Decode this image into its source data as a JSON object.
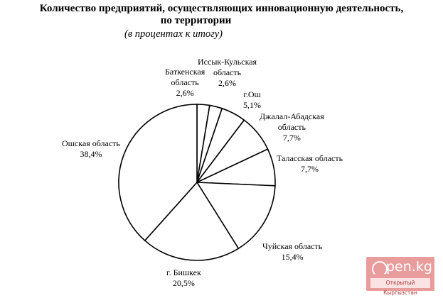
{
  "chart_data": {
    "type": "pie",
    "title": "Количество предприятий, осуществляющих инновационную деятельность, по территории",
    "subtitle": "(в процентах к итогу)",
    "start_angle": "12 o'clock, clockwise",
    "slices": [
      {
        "label": "Баткенская область",
        "value": 2.6,
        "display": "2,6%"
      },
      {
        "label": "Иссык-Кульская область",
        "value": 2.6,
        "display": "2,6%"
      },
      {
        "label": "г.Ош",
        "value": 5.1,
        "display": "5,1%"
      },
      {
        "label": "Джалал-Абадская область",
        "value": 7.7,
        "display": "7,7%"
      },
      {
        "label": "Таласская область",
        "value": 7.7,
        "display": "7,7%"
      },
      {
        "label": "Чуйская область",
        "value": 15.4,
        "display": "15,4%"
      },
      {
        "label": "г. Бишкек",
        "value": 20.5,
        "display": "20,5%"
      },
      {
        "label": "Ошская область",
        "value": 38.4,
        "display": "38,4%"
      }
    ],
    "fill": "#ffffff",
    "stroke": "#000000"
  },
  "header": {
    "title_line1": "Количество предприятий, осуществляющих инновационную деятельность,",
    "title_line2": "по территории",
    "subtitle": "(в процентах к итогу)"
  },
  "labels": {
    "batken": {
      "l1": "Баткенская",
      "l2": "область",
      "l3": "2,6%"
    },
    "issyk": {
      "l1": "Иссык-Кульская",
      "l2": "область",
      "l3": "2,6%"
    },
    "osh_city": {
      "l1": "г.Ош",
      "l2": "5,1%"
    },
    "jalal": {
      "l1": "Джалал-Абадская",
      "l2": "область",
      "l3": "7,7%"
    },
    "talas": {
      "l1": "Таласская область",
      "l2": "7,7%"
    },
    "chui": {
      "l1": "Чуйская область",
      "l2": "15,4%"
    },
    "bishkek": {
      "l1": "г. Бишкек",
      "l2": "20,5%"
    },
    "osh_region": {
      "l1": "Ошская область",
      "l2": "38,4%"
    }
  },
  "watermark": {
    "logo": "pen.kg",
    "tagline": "Открытый Кыргызстан"
  }
}
